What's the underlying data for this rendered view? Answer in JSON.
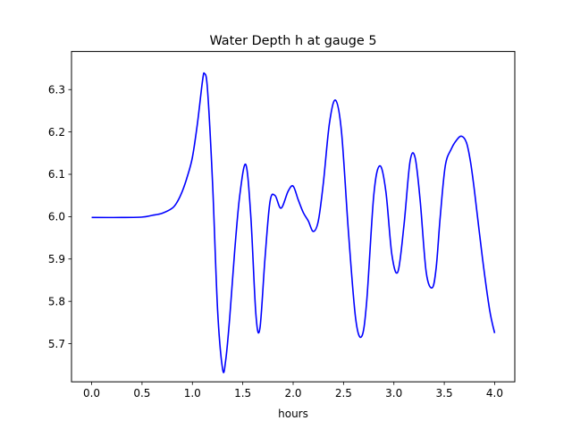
{
  "chart_data": {
    "type": "line",
    "title": "Water Depth h at gauge 5",
    "xlabel": "hours",
    "ylabel": "",
    "xlim": [
      -0.2,
      4.2
    ],
    "ylim": [
      5.61,
      6.39
    ],
    "xticks": [
      0.0,
      0.5,
      1.0,
      1.5,
      2.0,
      2.5,
      3.0,
      3.5,
      4.0
    ],
    "xtick_labels": [
      "0.0",
      "0.5",
      "1.0",
      "1.5",
      "2.0",
      "2.5",
      "3.0",
      "3.5",
      "4.0"
    ],
    "yticks": [
      5.7,
      5.8,
      5.9,
      6.0,
      6.1,
      6.2,
      6.3
    ],
    "ytick_labels": [
      "5.7",
      "5.8",
      "5.9",
      "6.0",
      "6.1",
      "6.2",
      "6.3"
    ],
    "grid": false,
    "legend": "none",
    "series": [
      {
        "color": "#0000ff",
        "x": [
          0.0,
          0.3,
          0.5,
          0.6,
          0.7,
          0.8,
          0.85,
          0.9,
          0.95,
          1.0,
          1.05,
          1.1,
          1.12,
          1.15,
          1.2,
          1.25,
          1.3,
          1.33,
          1.37,
          1.42,
          1.47,
          1.53,
          1.58,
          1.63,
          1.67,
          1.72,
          1.77,
          1.82,
          1.88,
          1.95,
          2.0,
          2.05,
          2.1,
          2.15,
          2.2,
          2.25,
          2.3,
          2.36,
          2.42,
          2.48,
          2.55,
          2.62,
          2.68,
          2.73,
          2.8,
          2.86,
          2.92,
          2.98,
          3.04,
          3.1,
          3.16,
          3.21,
          3.26,
          3.32,
          3.38,
          3.42,
          3.46,
          3.51,
          3.57,
          3.62,
          3.67,
          3.72,
          3.76,
          3.8,
          3.88,
          3.95,
          4.0
        ],
        "y": [
          5.998,
          5.998,
          5.999,
          6.003,
          6.008,
          6.02,
          6.035,
          6.06,
          6.095,
          6.14,
          6.22,
          6.32,
          6.338,
          6.3,
          6.08,
          5.78,
          5.64,
          5.66,
          5.76,
          5.92,
          6.05,
          6.123,
          6.0,
          5.77,
          5.736,
          5.9,
          6.035,
          6.05,
          6.02,
          6.06,
          6.072,
          6.04,
          6.01,
          5.99,
          5.965,
          5.99,
          6.08,
          6.22,
          6.275,
          6.2,
          5.96,
          5.76,
          5.717,
          5.8,
          6.05,
          6.12,
          6.06,
          5.91,
          5.87,
          5.98,
          6.13,
          6.14,
          6.04,
          5.87,
          5.832,
          5.88,
          6.0,
          6.12,
          6.16,
          6.18,
          6.19,
          6.175,
          6.13,
          6.06,
          5.9,
          5.78,
          5.725
        ]
      }
    ]
  }
}
